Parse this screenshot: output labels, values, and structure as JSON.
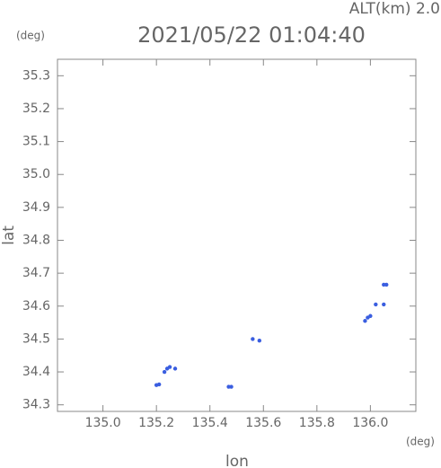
{
  "chart_data": {
    "type": "scatter",
    "title": "2021/05/22 01:04:40",
    "subtitle": "ALT(km) 2.0",
    "y_unit": "(deg)",
    "x_unit": "(deg)",
    "xlabel": "lon",
    "ylabel": "lat",
    "xlim": [
      134.83,
      136.17
    ],
    "ylim": [
      34.28,
      35.35
    ],
    "xticks": [
      {
        "value": 135.0,
        "label": "135.0"
      },
      135.2,
      135.4,
      135.6,
      135.8,
      {
        "value": 136.0,
        "label": "136.0"
      }
    ],
    "yticks": [
      34.3,
      34.4,
      34.5,
      34.6,
      34.7,
      34.8,
      34.9,
      {
        "value": 35.0,
        "label": "35.0"
      },
      35.1,
      35.2,
      35.3
    ],
    "series": [
      {
        "color": "#3a5ee0",
        "x": [
          135.2,
          135.21,
          135.23,
          135.24,
          135.25,
          135.27,
          135.47,
          135.48,
          135.56,
          135.585,
          135.98,
          135.99,
          136.0,
          136.02,
          136.05,
          136.05,
          136.06
        ],
        "values": [
          34.36,
          34.362,
          34.4,
          34.41,
          34.415,
          34.41,
          34.355,
          34.355,
          34.5,
          34.495,
          34.555,
          34.565,
          34.57,
          34.605,
          34.605,
          34.665,
          34.665
        ]
      }
    ]
  }
}
